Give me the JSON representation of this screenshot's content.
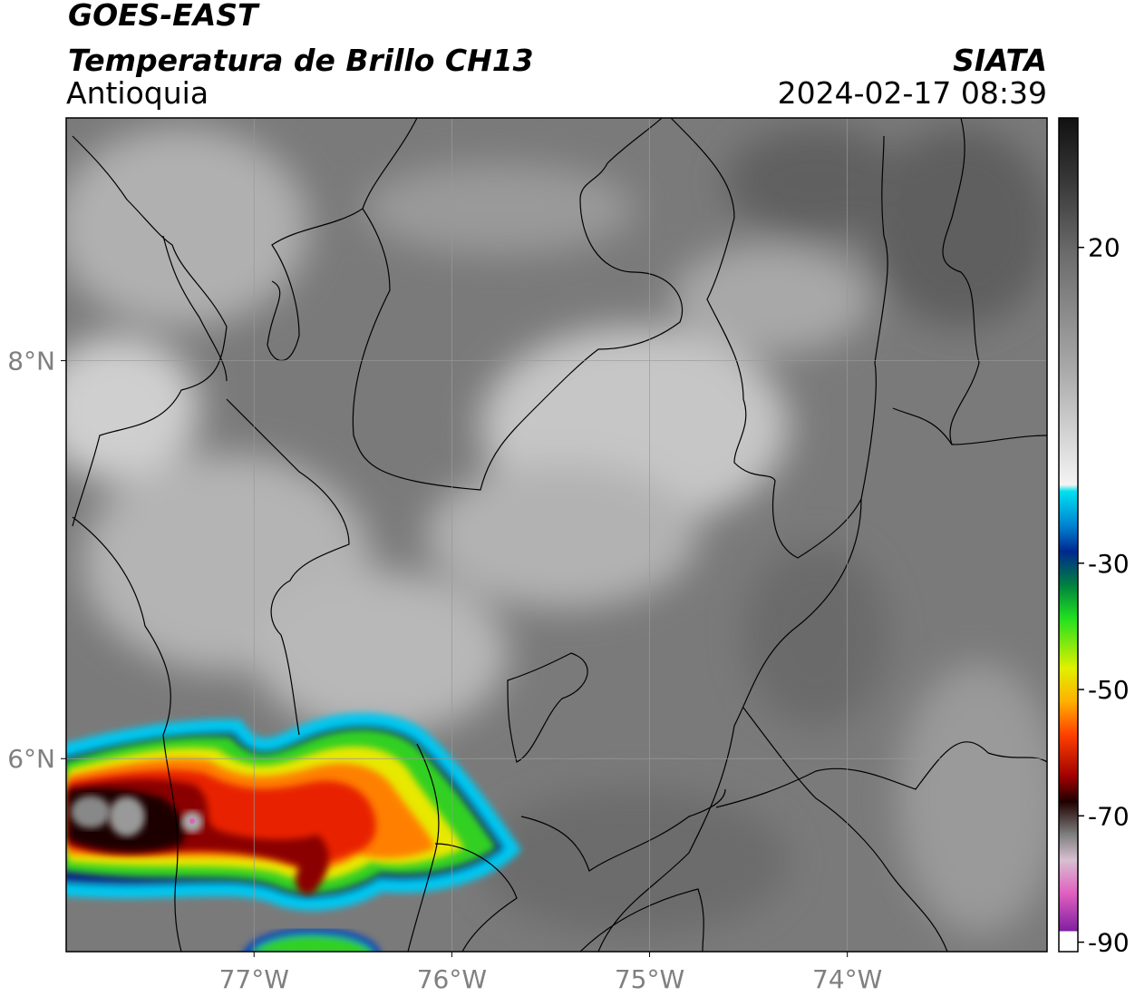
{
  "header": {
    "title": "GOES-EAST",
    "subtitle": "Temperatura de Brillo CH13",
    "region": "Antioquia",
    "source": "SIATA",
    "datetime": "2024-02-17 08:39"
  },
  "map": {
    "xlim": [
      -77.95,
      -72.99
    ],
    "ylim": [
      5.03,
      9.22
    ],
    "xticks": [
      {
        "value": -77,
        "label": "77°W"
      },
      {
        "value": -76,
        "label": "76°W"
      },
      {
        "value": -75,
        "label": "75°W"
      },
      {
        "value": -74,
        "label": "74°W"
      }
    ],
    "yticks": [
      {
        "value": 8,
        "label": "8°N"
      },
      {
        "value": 6,
        "label": "6°N"
      }
    ]
  },
  "colorbar": {
    "lim": [
      -91.5,
      40.5
    ],
    "ticks": [
      20,
      -30,
      -50,
      -70,
      -90
    ]
  }
}
